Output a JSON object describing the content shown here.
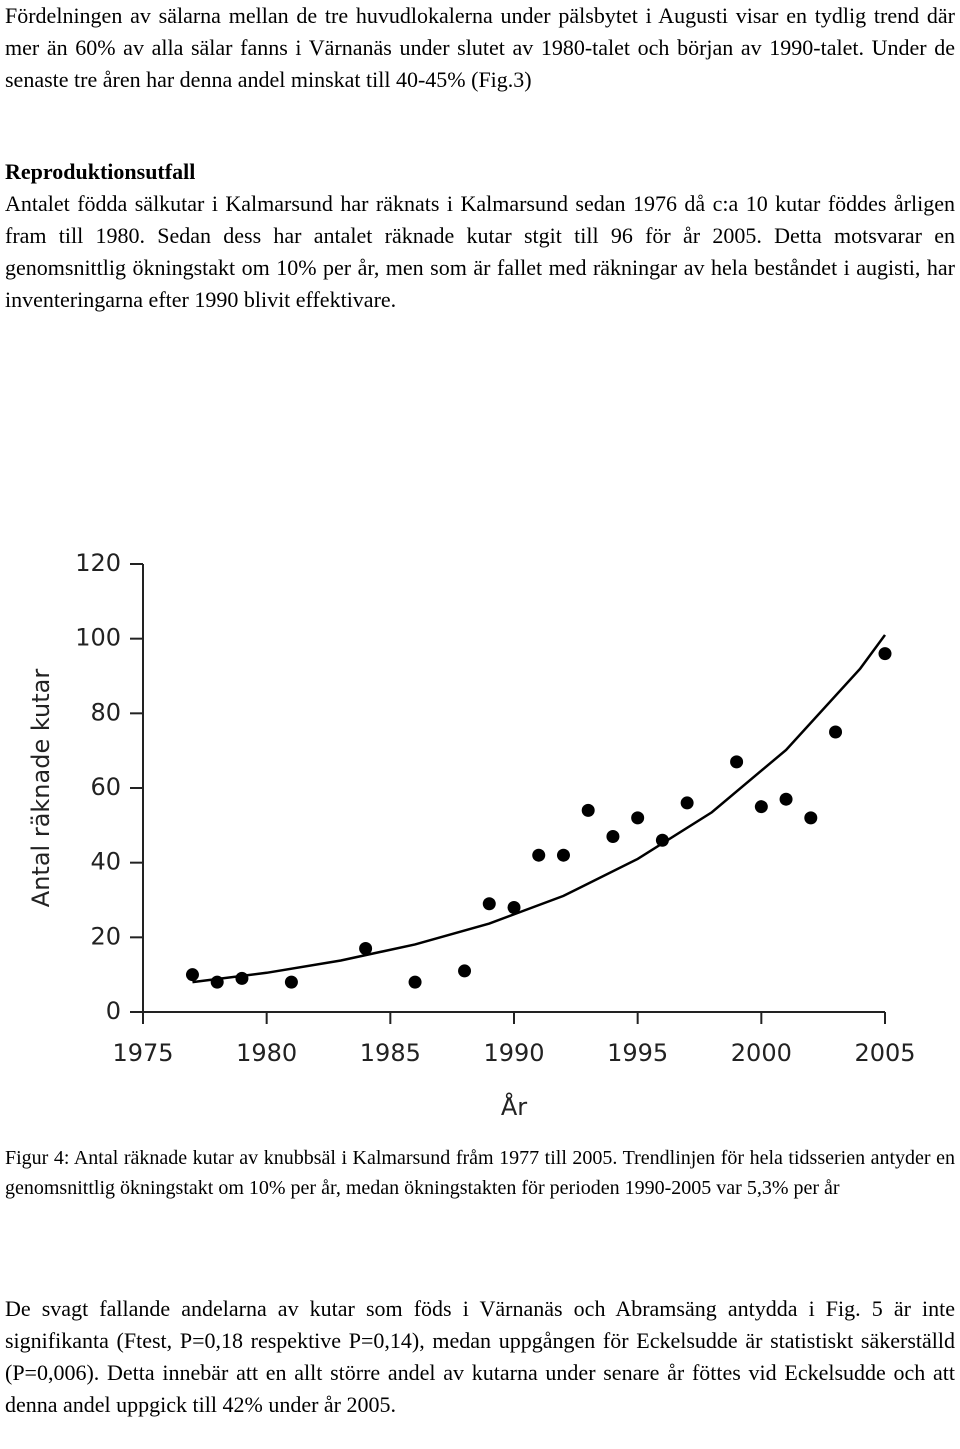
{
  "paragraphs": [
    "Fördelningen av sälarna mellan de tre huvudlokalerna under pälsbytet i Augusti visar en tydlig trend där mer än 60% av alla sälar fanns i Värnanäs under slutet av 1980-talet och början av 1990-talet. Under de senaste tre åren har denna andel minskat till 40-45% (Fig.3)",
    "Antalet födda sälkutar i Kalmarsund har räknats i Kalmarsund sedan 1976 då c:a 10 kutar föddes årligen fram till 1980. Sedan dess har antalet räknade kutar stgit till 96 för år 2005. Detta motsvarar en genomsnittlig ökningstakt om 10% per år, men som är fallet med räkningar av hela beståndet i augisti, har inventeringarna efter 1990 blivit effektivare.",
    "De svagt fallande andelarna av kutar som föds i Värnanäs och Abramsäng antydda i Fig. 5 är inte signifikanta (Ftest, P=0,18 respektive P=0,14), medan uppgången för Eckelsudde är statistiskt säkerställd (P=0,006). Detta innebär att en allt större andel av kutarna under senare år föttes vid Eckelsudde och att denna andel uppgick till 42% under år 2005."
  ],
  "heading": "Reproduktionsutfall",
  "caption": "Figur 4: Antal räknade kutar av knubbsäl i Kalmarsund fråm 1977 till 2005. Trendlinjen för hela tidsserien antyder en genomsnittlig ökningstakt om 10% per år, medan ökningstakten för perioden 1990-2005 var 5,3% per år",
  "chart_data": {
    "type": "scatter",
    "xlabel": "År",
    "ylabel": "Antal räknade kutar",
    "x": [
      1977,
      1978,
      1979,
      1981,
      1984,
      1986,
      1988,
      1989,
      1990,
      1991,
      1992,
      1993,
      1994,
      1995,
      1996,
      1997,
      1999,
      2000,
      2001,
      2002,
      2003,
      2005
    ],
    "values": [
      10,
      8,
      9,
      8,
      17,
      8,
      11,
      29,
      28,
      42,
      42,
      54,
      47,
      52,
      46,
      56,
      67,
      55,
      57,
      52,
      75,
      96
    ],
    "color": "#000000",
    "trend": {
      "x": [
        1977,
        1980,
        1983,
        1986,
        1989,
        1992,
        1995,
        1998,
        2001,
        2004,
        2005
      ],
      "values": [
        8,
        10.5,
        13.8,
        18.1,
        23.7,
        31.1,
        41,
        53.5,
        70.2,
        92,
        101
      ],
      "color": "#000000"
    },
    "xlim": [
      1975,
      2005
    ],
    "ylim": [
      0,
      120
    ],
    "xticks": [
      1975,
      1980,
      1985,
      1990,
      1995,
      2000,
      2005
    ],
    "yticks": [
      0,
      20,
      40,
      60,
      80,
      100,
      120
    ]
  }
}
